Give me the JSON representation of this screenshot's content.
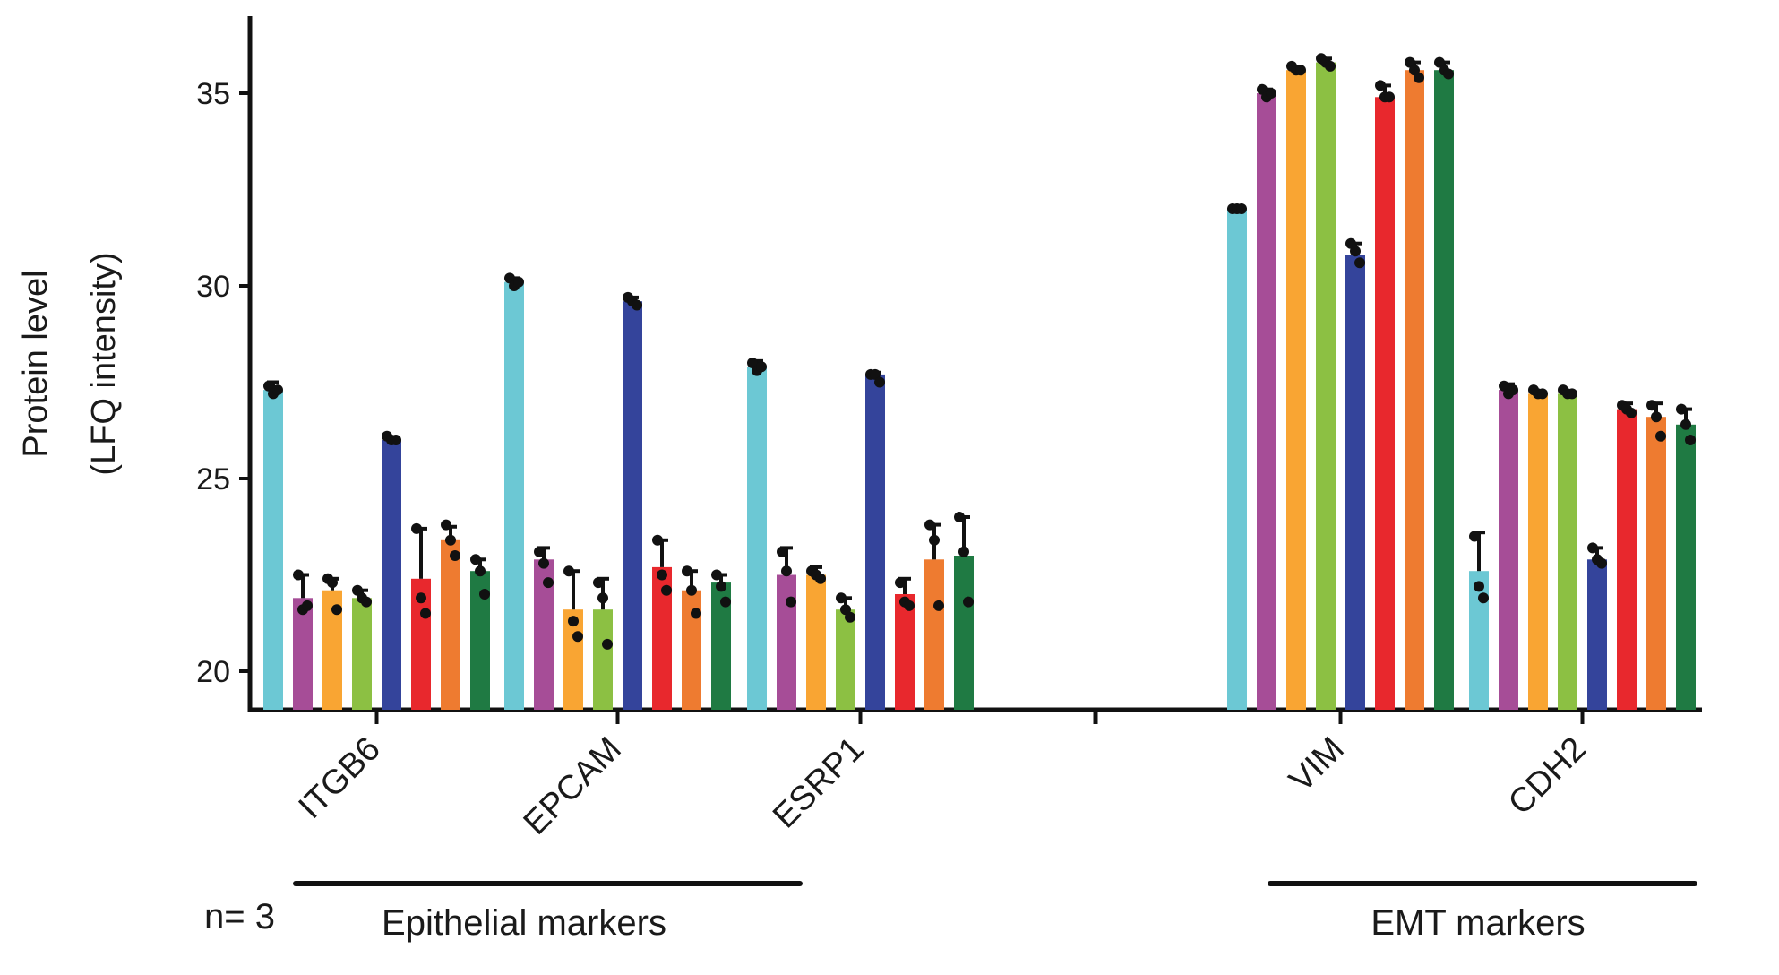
{
  "chart_data": {
    "type": "bar",
    "ylabel_line1": "Protein level",
    "ylabel_line2": "(LFQ intensity)",
    "ylim": [
      19,
      37
    ],
    "yticks": [
      20,
      25,
      30,
      35
    ],
    "grid": false,
    "legend": "none",
    "note": "n= 3",
    "categories": [
      "ITGB6",
      "EPCAM",
      "ESRP1",
      "VIM",
      "CDH2"
    ],
    "groups": [
      {
        "label": "Epithelial markers",
        "categories": [
          "ITGB6",
          "EPCAM",
          "ESRP1"
        ]
      },
      {
        "label": "EMT markers",
        "categories": [
          "VIM",
          "CDH2"
        ]
      }
    ],
    "series_colors": [
      "#6cc8d4",
      "#a64d97",
      "#f9a533",
      "#8cc043",
      "#34449b",
      "#e8282d",
      "#ee7b30",
      "#1f7a43"
    ],
    "series": [
      {
        "values": [
          27.3,
          30.1,
          27.9,
          32.0,
          22.6
        ],
        "err": [
          0.2,
          0.1,
          0.15,
          0.05,
          1.0
        ],
        "points": [
          [
            27.4,
            27.2,
            27.3
          ],
          [
            30.2,
            30.0,
            30.1
          ],
          [
            28.0,
            27.8,
            27.9
          ],
          [
            32.0,
            32.0,
            32.0
          ],
          [
            23.5,
            22.2,
            21.9
          ]
        ]
      },
      {
        "values": [
          21.9,
          22.9,
          22.5,
          35.0,
          27.3
        ],
        "err": [
          0.6,
          0.3,
          0.7,
          0.1,
          0.15
        ],
        "points": [
          [
            22.5,
            21.6,
            21.7
          ],
          [
            23.1,
            22.8,
            22.3
          ],
          [
            23.1,
            22.6,
            21.8
          ],
          [
            35.1,
            34.9,
            35.0
          ],
          [
            27.4,
            27.2,
            27.3
          ]
        ]
      },
      {
        "values": [
          22.1,
          21.6,
          22.5,
          35.6,
          27.2
        ],
        "err": [
          0.3,
          1.0,
          0.2,
          0.05,
          0.05
        ],
        "points": [
          [
            22.4,
            22.3,
            21.6
          ],
          [
            22.6,
            21.3,
            20.9
          ],
          [
            22.6,
            22.5,
            22.4
          ],
          [
            35.7,
            35.6,
            35.6
          ],
          [
            27.3,
            27.2,
            27.2
          ]
        ]
      },
      {
        "values": [
          21.9,
          21.6,
          21.6,
          35.8,
          27.2
        ],
        "err": [
          0.2,
          0.8,
          0.3,
          0.1,
          0.05
        ],
        "points": [
          [
            22.1,
            21.9,
            21.8
          ],
          [
            22.3,
            21.9,
            20.7
          ],
          [
            21.9,
            21.6,
            21.4
          ],
          [
            35.9,
            35.8,
            35.7
          ],
          [
            27.3,
            27.2,
            27.2
          ]
        ]
      },
      {
        "values": [
          26.0,
          29.6,
          27.7,
          30.8,
          22.9
        ],
        "err": [
          0.05,
          0.1,
          0.05,
          0.3,
          0.3
        ],
        "points": [
          [
            26.1,
            26.0,
            26.0
          ],
          [
            29.7,
            29.6,
            29.5
          ],
          [
            27.7,
            27.7,
            27.5
          ],
          [
            31.1,
            30.9,
            30.6
          ],
          [
            23.2,
            22.9,
            22.8
          ]
        ]
      },
      {
        "values": [
          22.4,
          22.7,
          22.0,
          34.9,
          26.8
        ],
        "err": [
          1.3,
          0.7,
          0.4,
          0.3,
          0.15
        ],
        "points": [
          [
            23.7,
            21.9,
            21.5
          ],
          [
            23.4,
            22.5,
            22.1
          ],
          [
            22.3,
            21.8,
            21.7
          ],
          [
            35.2,
            34.9,
            34.9
          ],
          [
            26.9,
            26.8,
            26.7
          ]
        ]
      },
      {
        "values": [
          23.4,
          22.1,
          22.9,
          35.6,
          26.6
        ],
        "err": [
          0.35,
          0.5,
          0.9,
          0.2,
          0.35
        ],
        "points": [
          [
            23.8,
            23.4,
            23.0
          ],
          [
            22.6,
            22.1,
            21.5
          ],
          [
            23.8,
            23.4,
            21.7
          ],
          [
            35.8,
            35.6,
            35.4
          ],
          [
            26.9,
            26.6,
            26.1
          ]
        ]
      },
      {
        "values": [
          22.6,
          22.3,
          23.0,
          35.6,
          26.4
        ],
        "err": [
          0.3,
          0.2,
          1.0,
          0.2,
          0.4
        ],
        "points": [
          [
            22.9,
            22.6,
            22.0
          ],
          [
            22.5,
            22.2,
            21.8
          ],
          [
            24.0,
            23.1,
            21.8
          ],
          [
            35.8,
            35.6,
            35.5
          ],
          [
            26.8,
            26.4,
            26.0
          ]
        ]
      }
    ]
  }
}
